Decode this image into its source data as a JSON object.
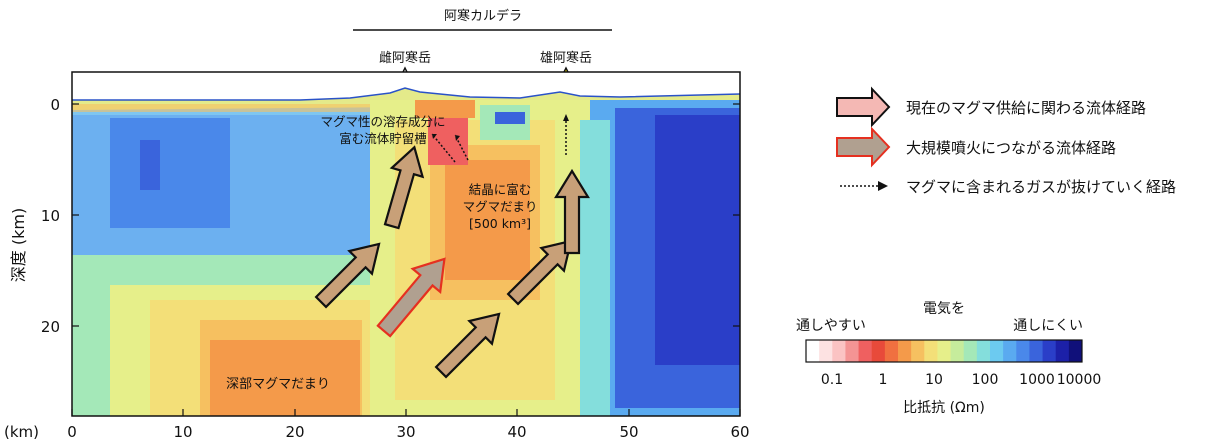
{
  "caldera": {
    "label": "阿寒カルデラ"
  },
  "volcanoes": [
    {
      "label": "雌阿寒岳",
      "color": "#ffffff"
    },
    {
      "label": "雄阿寒岳",
      "color": "#f5e400"
    }
  ],
  "axes": {
    "ylabel": "深度 (km)",
    "xunit": "(km)",
    "x_ticks": [
      "0",
      "10",
      "20",
      "30",
      "40",
      "50",
      "60"
    ],
    "y_ticks": [
      "0",
      "10",
      "20"
    ]
  },
  "annotations": {
    "reservoir_line1": "マグマ性の溶存成分に",
    "reservoir_line2": "富む流体貯留槽",
    "crystal_line1": "結晶に富む",
    "crystal_line2": "マグマだまり",
    "crystal_line3": "[500 km³]",
    "deep": "深部マグマだまり"
  },
  "legend": {
    "current_supply": "現在のマグマ供給に関わる流体経路",
    "large_eruption": "大規模噴火につながる流体経路",
    "gas_escape": "マグマに含まれるガスが抜けていく経路",
    "current_color": "#f4b8b4",
    "large_color": "#b0a090",
    "large_outline": "#e53020"
  },
  "colorbar": {
    "title": "電気を",
    "left_label": "通しやすい",
    "right_label": "通しにくい",
    "ticks": [
      "0.1",
      "1",
      "10",
      "100",
      "1000",
      "10000"
    ],
    "unit": "比抵抗 (Ωm)",
    "colors": [
      "#ffffff",
      "#fde2e2",
      "#fbc3c3",
      "#f49494",
      "#ef6060",
      "#e84a3a",
      "#f07040",
      "#f49a4a",
      "#f6c060",
      "#f3df78",
      "#e6ef8a",
      "#c6ec9c",
      "#a4e8b8",
      "#84dedc",
      "#6ccaf0",
      "#5aaaf0",
      "#4a88ea",
      "#3a64dc",
      "#2a3ec8",
      "#1c20a8",
      "#10107a"
    ]
  }
}
